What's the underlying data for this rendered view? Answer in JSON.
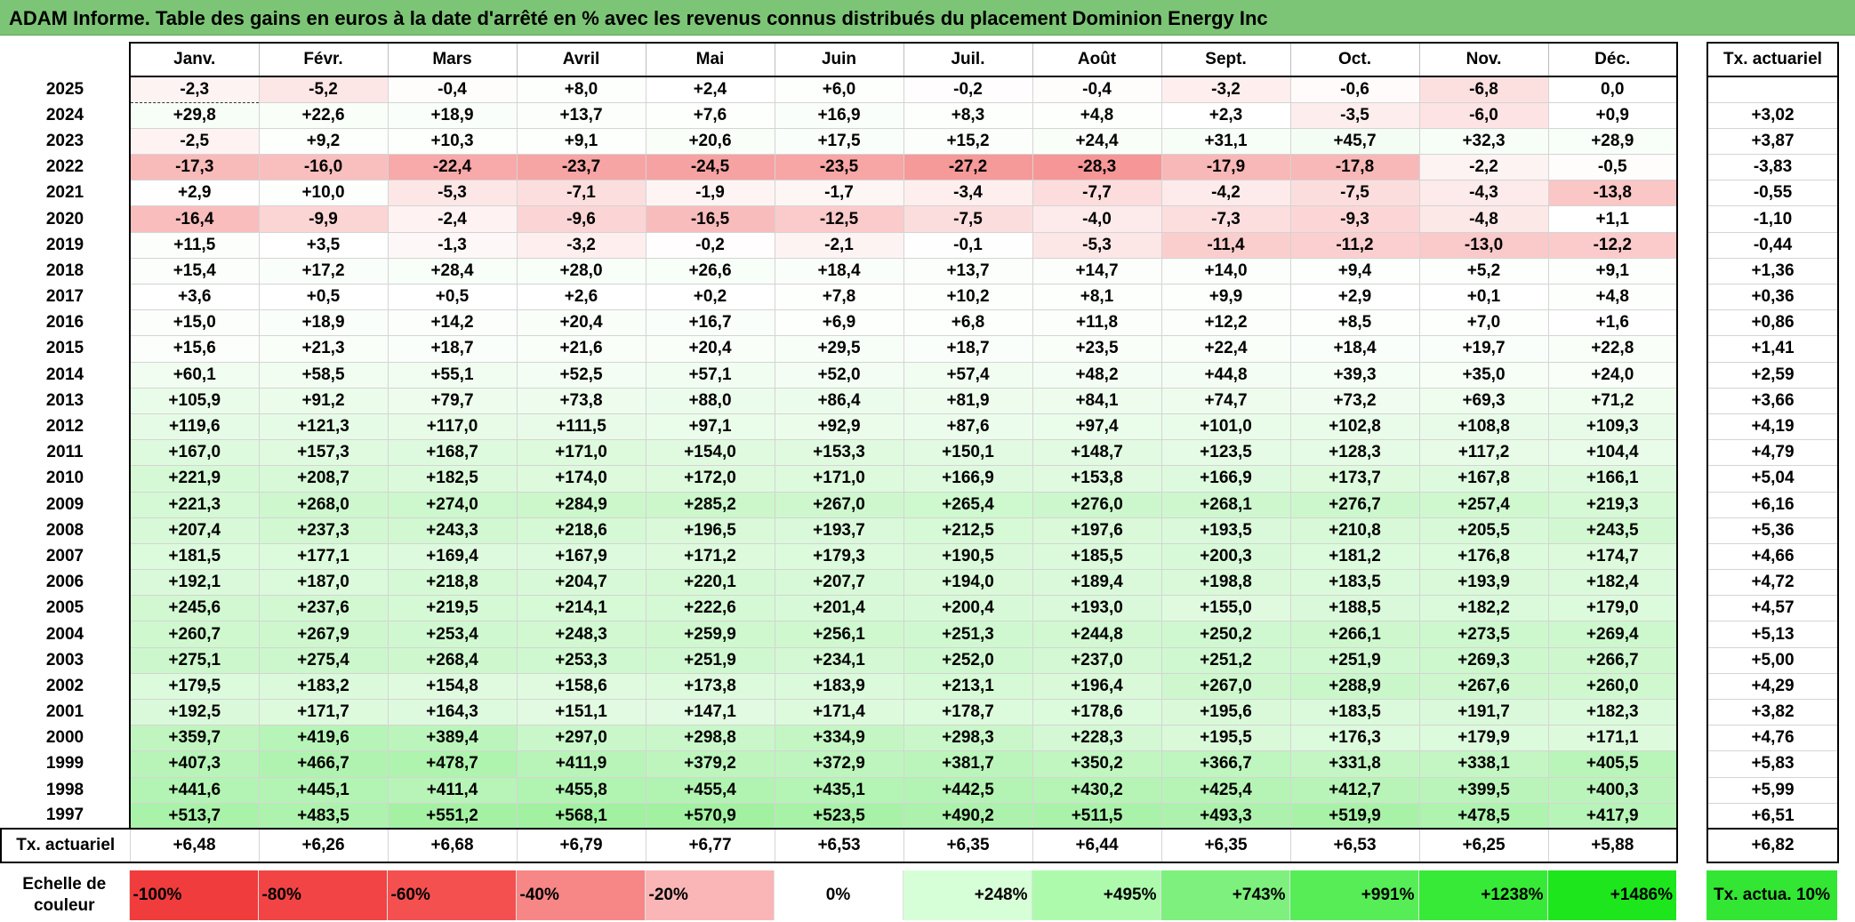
{
  "title": "ADAM Informe. Table des gains en euros à la date d'arrêté en % avec les revenus connus distribués du placement Dominion Energy Inc",
  "months": [
    "Janv.",
    "Févr.",
    "Mars",
    "Avril",
    "Mai",
    "Juin",
    "Juil.",
    "Août",
    "Sept.",
    "Oct.",
    "Nov.",
    "Déc."
  ],
  "annual_header": "Tx. actuariel",
  "colors": {
    "title_bg": "#7cc576",
    "scale": [
      "#f03c3c",
      "#f24444",
      "#f55050",
      "#f78686",
      "#fab6b6",
      "#ffffff",
      "#d7ffd7",
      "#adfaad",
      "#7df07d",
      "#57ed57",
      "#37ea37",
      "#1de61d"
    ],
    "target": "#33e633"
  },
  "rows": [
    {
      "year": "2025",
      "values": [
        "-2,3",
        "-5,2",
        "-0,4",
        "+8,0",
        "+2,4",
        "+6,0",
        "-0,2",
        "-0,4",
        "-3,2",
        "-0,6",
        "-6,8",
        "0,0"
      ],
      "annual": ""
    },
    {
      "year": "2024",
      "values": [
        "+29,8",
        "+22,6",
        "+18,9",
        "+13,7",
        "+7,6",
        "+16,9",
        "+8,3",
        "+4,8",
        "+2,3",
        "-3,5",
        "-6,0",
        "+0,9"
      ],
      "annual": "+3,02"
    },
    {
      "year": "2023",
      "values": [
        "-2,5",
        "+9,2",
        "+10,3",
        "+9,1",
        "+20,6",
        "+17,5",
        "+15,2",
        "+24,4",
        "+31,1",
        "+45,7",
        "+32,3",
        "+28,9"
      ],
      "annual": "+3,87"
    },
    {
      "year": "2022",
      "values": [
        "-17,3",
        "-16,0",
        "-22,4",
        "-23,7",
        "-24,5",
        "-23,5",
        "-27,2",
        "-28,3",
        "-17,9",
        "-17,8",
        "-2,2",
        "-0,5"
      ],
      "annual": "-3,83"
    },
    {
      "year": "2021",
      "values": [
        "+2,9",
        "+10,0",
        "-5,3",
        "-7,1",
        "-1,9",
        "-1,7",
        "-3,4",
        "-7,7",
        "-4,2",
        "-7,5",
        "-4,3",
        "-13,8"
      ],
      "annual": "-0,55"
    },
    {
      "year": "2020",
      "values": [
        "-16,4",
        "-9,9",
        "-2,4",
        "-9,6",
        "-16,5",
        "-12,5",
        "-7,5",
        "-4,0",
        "-7,3",
        "-9,3",
        "-4,8",
        "+1,1"
      ],
      "annual": "-1,10"
    },
    {
      "year": "2019",
      "values": [
        "+11,5",
        "+3,5",
        "-1,3",
        "-3,2",
        "-0,2",
        "-2,1",
        "-0,1",
        "-5,3",
        "-11,4",
        "-11,2",
        "-13,0",
        "-12,2"
      ],
      "annual": "-0,44"
    },
    {
      "year": "2018",
      "values": [
        "+15,4",
        "+17,2",
        "+28,4",
        "+28,0",
        "+26,6",
        "+18,4",
        "+13,7",
        "+14,7",
        "+14,0",
        "+9,4",
        "+5,2",
        "+9,1"
      ],
      "annual": "+1,36"
    },
    {
      "year": "2017",
      "values": [
        "+3,6",
        "+0,5",
        "+0,5",
        "+2,6",
        "+0,2",
        "+7,8",
        "+10,2",
        "+8,1",
        "+9,9",
        "+2,9",
        "+0,1",
        "+4,8"
      ],
      "annual": "+0,36"
    },
    {
      "year": "2016",
      "values": [
        "+15,0",
        "+18,9",
        "+14,2",
        "+20,4",
        "+16,7",
        "+6,9",
        "+6,8",
        "+11,8",
        "+12,2",
        "+8,5",
        "+7,0",
        "+1,6"
      ],
      "annual": "+0,86"
    },
    {
      "year": "2015",
      "values": [
        "+15,6",
        "+21,3",
        "+18,7",
        "+21,6",
        "+20,4",
        "+29,5",
        "+18,7",
        "+23,5",
        "+22,4",
        "+18,4",
        "+19,7",
        "+22,8"
      ],
      "annual": "+1,41"
    },
    {
      "year": "2014",
      "values": [
        "+60,1",
        "+58,5",
        "+55,1",
        "+52,5",
        "+57,1",
        "+52,0",
        "+57,4",
        "+48,2",
        "+44,8",
        "+39,3",
        "+35,0",
        "+24,0"
      ],
      "annual": "+2,59"
    },
    {
      "year": "2013",
      "values": [
        "+105,9",
        "+91,2",
        "+79,7",
        "+73,8",
        "+88,0",
        "+86,4",
        "+81,9",
        "+84,1",
        "+74,7",
        "+73,2",
        "+69,3",
        "+71,2"
      ],
      "annual": "+3,66"
    },
    {
      "year": "2012",
      "values": [
        "+119,6",
        "+121,3",
        "+117,0",
        "+111,5",
        "+97,1",
        "+92,9",
        "+87,6",
        "+97,4",
        "+101,0",
        "+102,8",
        "+108,8",
        "+109,3"
      ],
      "annual": "+4,19"
    },
    {
      "year": "2011",
      "values": [
        "+167,0",
        "+157,3",
        "+168,7",
        "+171,0",
        "+154,0",
        "+153,3",
        "+150,1",
        "+148,7",
        "+123,5",
        "+128,3",
        "+117,2",
        "+104,4"
      ],
      "annual": "+4,79"
    },
    {
      "year": "2010",
      "values": [
        "+221,9",
        "+208,7",
        "+182,5",
        "+174,0",
        "+172,0",
        "+171,0",
        "+166,9",
        "+153,8",
        "+166,9",
        "+173,7",
        "+167,8",
        "+166,1"
      ],
      "annual": "+5,04"
    },
    {
      "year": "2009",
      "values": [
        "+221,3",
        "+268,0",
        "+274,0",
        "+284,9",
        "+285,2",
        "+267,0",
        "+265,4",
        "+276,0",
        "+268,1",
        "+276,7",
        "+257,4",
        "+219,3"
      ],
      "annual": "+6,16"
    },
    {
      "year": "2008",
      "values": [
        "+207,4",
        "+237,3",
        "+243,3",
        "+218,6",
        "+196,5",
        "+193,7",
        "+212,5",
        "+197,6",
        "+193,5",
        "+210,8",
        "+205,5",
        "+243,5"
      ],
      "annual": "+5,36"
    },
    {
      "year": "2007",
      "values": [
        "+181,5",
        "+177,1",
        "+169,4",
        "+167,9",
        "+171,2",
        "+179,3",
        "+190,5",
        "+185,5",
        "+200,3",
        "+181,2",
        "+176,8",
        "+174,7"
      ],
      "annual": "+4,66"
    },
    {
      "year": "2006",
      "values": [
        "+192,1",
        "+187,0",
        "+218,8",
        "+204,7",
        "+220,1",
        "+207,7",
        "+194,0",
        "+189,4",
        "+198,8",
        "+183,5",
        "+193,9",
        "+182,4"
      ],
      "annual": "+4,72"
    },
    {
      "year": "2005",
      "values": [
        "+245,6",
        "+237,6",
        "+219,5",
        "+214,1",
        "+222,6",
        "+201,4",
        "+200,4",
        "+193,0",
        "+155,0",
        "+188,5",
        "+182,2",
        "+179,0"
      ],
      "annual": "+4,57"
    },
    {
      "year": "2004",
      "values": [
        "+260,7",
        "+267,9",
        "+253,4",
        "+248,3",
        "+259,9",
        "+256,1",
        "+251,3",
        "+244,8",
        "+250,2",
        "+266,1",
        "+273,5",
        "+269,4"
      ],
      "annual": "+5,13"
    },
    {
      "year": "2003",
      "values": [
        "+275,1",
        "+275,4",
        "+268,4",
        "+253,3",
        "+251,9",
        "+234,1",
        "+252,0",
        "+237,0",
        "+251,2",
        "+251,9",
        "+269,3",
        "+266,7"
      ],
      "annual": "+5,00"
    },
    {
      "year": "2002",
      "values": [
        "+179,5",
        "+183,2",
        "+154,8",
        "+158,6",
        "+173,8",
        "+183,9",
        "+213,1",
        "+196,4",
        "+267,0",
        "+288,9",
        "+267,6",
        "+260,0"
      ],
      "annual": "+4,29"
    },
    {
      "year": "2001",
      "values": [
        "+192,5",
        "+171,7",
        "+164,3",
        "+151,1",
        "+147,1",
        "+171,4",
        "+178,7",
        "+178,6",
        "+195,6",
        "+183,5",
        "+191,7",
        "+182,3"
      ],
      "annual": "+3,82"
    },
    {
      "year": "2000",
      "values": [
        "+359,7",
        "+419,6",
        "+389,4",
        "+297,0",
        "+298,8",
        "+334,9",
        "+298,3",
        "+228,3",
        "+195,5",
        "+176,3",
        "+179,9",
        "+171,1"
      ],
      "annual": "+4,76"
    },
    {
      "year": "1999",
      "values": [
        "+407,3",
        "+466,7",
        "+478,7",
        "+411,9",
        "+379,2",
        "+372,9",
        "+381,7",
        "+350,2",
        "+366,7",
        "+331,8",
        "+338,1",
        "+405,5"
      ],
      "annual": "+5,83"
    },
    {
      "year": "1998",
      "values": [
        "+441,6",
        "+445,1",
        "+411,4",
        "+455,8",
        "+455,4",
        "+435,1",
        "+442,5",
        "+430,2",
        "+425,4",
        "+412,7",
        "+399,5",
        "+400,3"
      ],
      "annual": "+5,99"
    },
    {
      "year": "1997",
      "values": [
        "+513,7",
        "+483,5",
        "+551,2",
        "+568,1",
        "+570,9",
        "+523,5",
        "+490,2",
        "+511,5",
        "+493,3",
        "+519,9",
        "+478,5",
        "+417,9"
      ],
      "annual": "+6,51"
    }
  ],
  "totals": {
    "label": "Tx. actuariel",
    "values": [
      "+6,48",
      "+6,26",
      "+6,68",
      "+6,79",
      "+6,77",
      "+6,53",
      "+6,35",
      "+6,44",
      "+6,35",
      "+6,53",
      "+6,25",
      "+5,88"
    ],
    "annual": "+6,82"
  },
  "scale": {
    "label": "Echelle de couleur",
    "stops": [
      "-100%",
      "-80%",
      "-60%",
      "-40%",
      "-20%",
      "0%",
      "+248%",
      "+495%",
      "+743%",
      "+991%",
      "+1238%",
      "+1486%"
    ],
    "target_label": "Tx. actua. 10%"
  }
}
